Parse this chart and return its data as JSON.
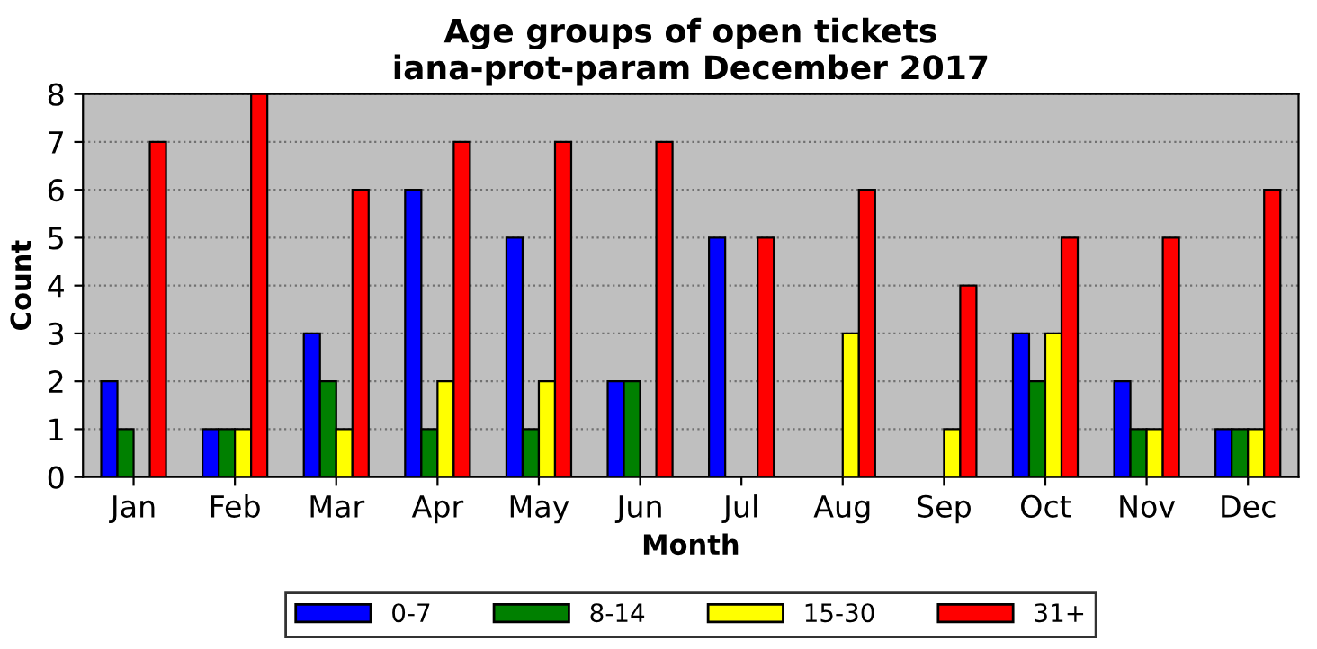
{
  "chart_data": {
    "type": "bar",
    "title": "Age groups of open tickets\niana-prot-param December 2017",
    "xlabel": "Month",
    "ylabel": "Count",
    "categories": [
      "Jan",
      "Feb",
      "Mar",
      "Apr",
      "May",
      "Jun",
      "Jul",
      "Aug",
      "Sep",
      "Oct",
      "Nov",
      "Dec"
    ],
    "series": [
      {
        "name": "0-7",
        "color": "#0000ff",
        "values": [
          2,
          1,
          3,
          6,
          5,
          2,
          5,
          0,
          0,
          3,
          2,
          1
        ]
      },
      {
        "name": "8-14",
        "color": "#008000",
        "values": [
          1,
          1,
          2,
          1,
          1,
          2,
          0,
          0,
          0,
          2,
          1,
          1
        ]
      },
      {
        "name": "15-30",
        "color": "#ffff00",
        "values": [
          0,
          1,
          1,
          2,
          2,
          0,
          0,
          3,
          1,
          3,
          1,
          1
        ]
      },
      {
        "name": "31+",
        "color": "#ff0000",
        "values": [
          7,
          8,
          6,
          7,
          7,
          7,
          5,
          6,
          4,
          5,
          5,
          6
        ]
      }
    ],
    "ylim": [
      0,
      8
    ],
    "yticks": [
      0,
      1,
      2,
      3,
      4,
      5,
      6,
      7,
      8
    ],
    "grid": "y",
    "legend": "bottom"
  }
}
